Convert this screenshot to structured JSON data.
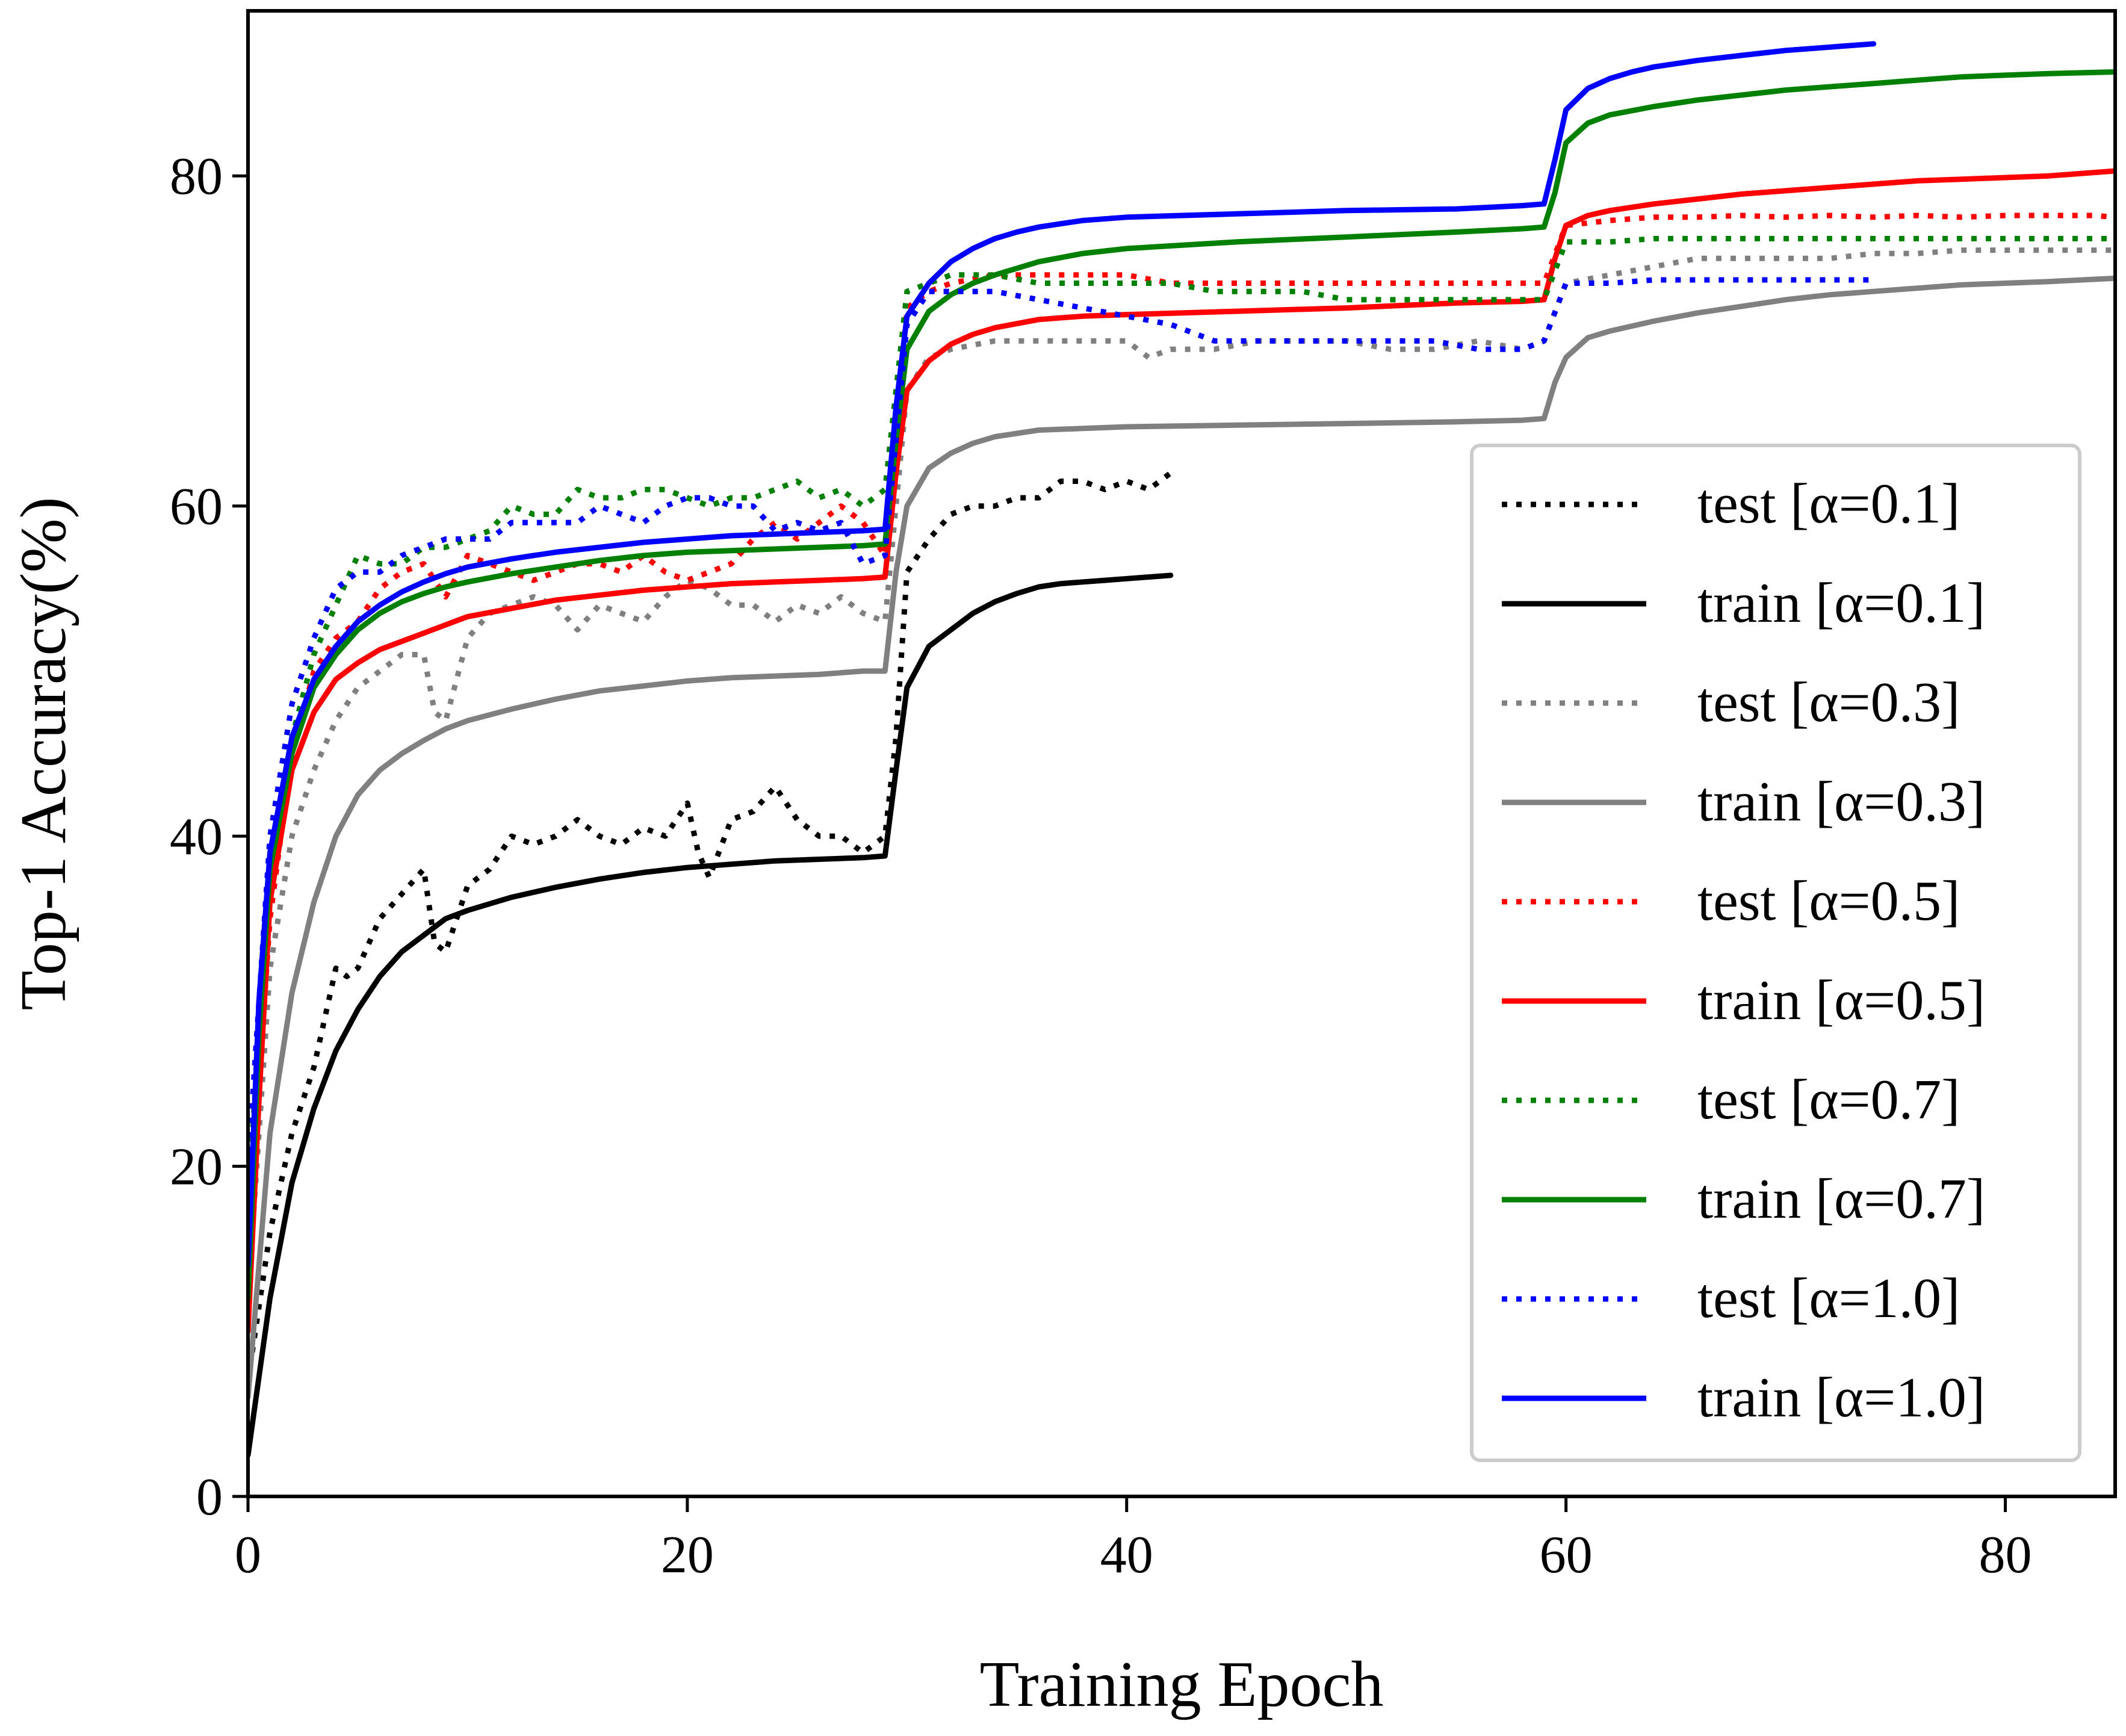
{
  "chart_data": {
    "type": "line",
    "title": "",
    "xlabel": "Training Epoch",
    "ylabel": "Top-1 Accuracy(%)",
    "xlim": [
      0,
      85
    ],
    "ylim": [
      0,
      90
    ],
    "xticks": [
      0,
      20,
      40,
      60,
      80
    ],
    "yticks": [
      0,
      20,
      40,
      60,
      80
    ],
    "grid": false,
    "legend_position": "lower-right",
    "series": [
      {
        "name": "test [α=0.1]",
        "color": "#000000",
        "style": "dotted",
        "x": [
          0,
          1,
          2,
          3,
          4,
          4.5,
          5,
          6,
          7,
          8,
          8.5,
          9,
          10,
          11,
          12,
          13,
          14,
          15,
          16,
          17,
          18,
          19,
          20,
          20.5,
          21,
          22,
          23,
          24,
          25,
          26,
          27,
          28,
          29,
          29.5,
          30,
          31,
          32,
          33,
          34,
          35,
          36,
          37,
          38,
          39,
          40,
          41,
          42
        ],
        "y": [
          7,
          16,
          22,
          26,
          32,
          31.5,
          32,
          35,
          36.5,
          38,
          33.5,
          33,
          37,
          38,
          40,
          39.5,
          40,
          41,
          40,
          39.5,
          40.5,
          40,
          42,
          39,
          37.5,
          41,
          41.5,
          43,
          41,
          40,
          40,
          39,
          40,
          46,
          56,
          58,
          59.5,
          60,
          60,
          60.5,
          60.5,
          61.5,
          61.5,
          61,
          61.5,
          61,
          62
        ]
      },
      {
        "name": "train [α=0.1]",
        "color": "#000000",
        "style": "solid",
        "x": [
          0,
          1,
          2,
          3,
          4,
          5,
          6,
          7,
          8,
          9,
          10,
          12,
          14,
          16,
          18,
          20,
          22,
          24,
          26,
          28,
          29,
          29.5,
          30,
          31,
          32,
          33,
          34,
          35,
          36,
          37,
          38,
          39,
          40,
          41,
          42
        ],
        "y": [
          2.5,
          12,
          19,
          23.5,
          27,
          29.5,
          31.5,
          33,
          34,
          35,
          35.5,
          36.3,
          36.9,
          37.4,
          37.8,
          38.1,
          38.3,
          38.5,
          38.6,
          38.7,
          38.8,
          44,
          49,
          51.5,
          52.5,
          53.5,
          54.2,
          54.7,
          55.1,
          55.3,
          55.4,
          55.5,
          55.6,
          55.7,
          55.8
        ]
      },
      {
        "name": "test [α=0.3]",
        "color": "#808080",
        "style": "dotted",
        "x": [
          0,
          1,
          2,
          3,
          4,
          5,
          6,
          7,
          8,
          8.5,
          9,
          10,
          11,
          12,
          13,
          14,
          15,
          16,
          17,
          18,
          19,
          20,
          21,
          22,
          23,
          24,
          25,
          26,
          27,
          28,
          29,
          30,
          31,
          32,
          34,
          36,
          38,
          40,
          41,
          42,
          44,
          46,
          48,
          50,
          52,
          54,
          56,
          58,
          59,
          60,
          62,
          64,
          66,
          68,
          70,
          72,
          74,
          76,
          78,
          80,
          82,
          84,
          85
        ],
        "y": [
          12,
          32,
          40,
          44,
          47,
          49,
          50,
          51,
          51,
          47.5,
          47,
          52,
          53.5,
          54,
          54.5,
          54,
          52.5,
          54,
          53.5,
          53,
          54.5,
          55.5,
          55,
          54,
          54,
          53,
          54,
          53.5,
          54.5,
          53.5,
          53,
          67,
          69,
          69.5,
          70,
          70,
          70,
          70,
          69,
          69.5,
          69.5,
          70,
          70,
          70,
          69.5,
          69.5,
          70,
          69.5,
          70,
          73.5,
          74,
          74.5,
          75,
          75,
          75,
          75,
          75.3,
          75.3,
          75.5,
          75.5,
          75.5,
          75.5,
          75.5
        ]
      },
      {
        "name": "train [α=0.3]",
        "color": "#808080",
        "style": "solid",
        "x": [
          0,
          0.5,
          1,
          2,
          3,
          4,
          5,
          6,
          7,
          8,
          9,
          10,
          12,
          14,
          16,
          18,
          20,
          22,
          24,
          26,
          28,
          29,
          29.5,
          30,
          31,
          32,
          33,
          34,
          36,
          38,
          40,
          45,
          50,
          55,
          58,
          59,
          59.5,
          60,
          61,
          62,
          64,
          66,
          68,
          70,
          72,
          74,
          76,
          78,
          80,
          82,
          85
        ],
        "y": [
          6,
          14,
          22,
          30.5,
          36,
          40,
          42.5,
          44,
          45,
          45.8,
          46.5,
          47,
          47.7,
          48.3,
          48.8,
          49.1,
          49.4,
          49.6,
          49.7,
          49.8,
          50,
          50,
          56,
          60,
          62.3,
          63.2,
          63.8,
          64.2,
          64.6,
          64.7,
          64.8,
          64.9,
          65,
          65.1,
          65.2,
          65.3,
          67.5,
          69,
          70.2,
          70.6,
          71.2,
          71.7,
          72.1,
          72.5,
          72.8,
          73,
          73.2,
          73.4,
          73.5,
          73.6,
          73.8
        ]
      },
      {
        "name": "test [α=0.5]",
        "color": "#ff0000",
        "style": "dotted",
        "x": [
          0,
          1,
          2,
          3,
          4,
          5,
          6,
          7,
          8,
          9,
          10,
          11,
          12,
          13,
          14,
          15,
          16,
          17,
          18,
          19,
          20,
          21,
          22,
          23,
          24,
          25,
          26,
          27,
          28,
          29,
          30,
          31,
          32,
          34,
          36,
          38,
          40,
          42,
          44,
          46,
          48,
          50,
          52,
          54,
          56,
          58,
          59,
          60,
          62,
          64,
          66,
          68,
          70,
          72,
          74,
          76,
          78,
          80,
          82,
          84,
          85
        ],
        "y": [
          15,
          35,
          45,
          50,
          52,
          53,
          55,
          56,
          56.5,
          54.5,
          57,
          56.5,
          56,
          55.5,
          56,
          56.5,
          56.5,
          56,
          57,
          56,
          55.5,
          56,
          56.5,
          58,
          59,
          58,
          59,
          60,
          59,
          57,
          72,
          73,
          73.5,
          74,
          74,
          74,
          74,
          73.5,
          73.5,
          73.5,
          73.5,
          73.5,
          73.5,
          73.5,
          73.5,
          73.5,
          73.5,
          77,
          77.3,
          77.5,
          77.5,
          77.6,
          77.5,
          77.6,
          77.5,
          77.6,
          77.5,
          77.6,
          77.6,
          77.6,
          77.5
        ]
      },
      {
        "name": "train [α=0.5]",
        "color": "#ff0000",
        "style": "solid",
        "x": [
          0,
          0.5,
          1,
          2,
          3,
          4,
          5,
          6,
          7,
          8,
          9,
          10,
          12,
          14,
          16,
          18,
          20,
          22,
          24,
          26,
          28,
          29,
          29.5,
          30,
          31,
          32,
          33,
          34,
          36,
          38,
          40,
          45,
          50,
          55,
          58,
          59,
          59.5,
          60,
          61,
          62,
          64,
          66,
          68,
          70,
          72,
          74,
          76,
          78,
          80,
          82,
          85
        ],
        "y": [
          10,
          24,
          36,
          44,
          47.5,
          49.5,
          50.5,
          51.3,
          51.8,
          52.3,
          52.8,
          53.3,
          53.8,
          54.3,
          54.6,
          54.9,
          55.1,
          55.3,
          55.4,
          55.5,
          55.6,
          55.7,
          62,
          67,
          68.8,
          69.8,
          70.4,
          70.8,
          71.3,
          71.5,
          71.6,
          71.8,
          72,
          72.3,
          72.4,
          72.5,
          75,
          77,
          77.6,
          77.9,
          78.3,
          78.6,
          78.9,
          79.1,
          79.3,
          79.5,
          79.7,
          79.8,
          79.9,
          80,
          80.3
        ]
      },
      {
        "name": "test [α=0.7]",
        "color": "#008000",
        "style": "dotted",
        "x": [
          0,
          1,
          2,
          3,
          4,
          5,
          6,
          7,
          8,
          9,
          10,
          11,
          12,
          13,
          14,
          15,
          16,
          17,
          18,
          19,
          20,
          21,
          22,
          23,
          24,
          25,
          26,
          27,
          28,
          29,
          30,
          31,
          32,
          34,
          36,
          38,
          40,
          42,
          44,
          46,
          48,
          50,
          52,
          54,
          56,
          58,
          59,
          60,
          62,
          64,
          66,
          68,
          70,
          72,
          74,
          76,
          78,
          80,
          82,
          84,
          85
        ],
        "y": [
          18,
          38,
          46,
          51,
          54,
          57,
          56.5,
          56.5,
          57.5,
          57.5,
          58,
          58.5,
          60,
          59.5,
          59.5,
          61,
          60.5,
          60.5,
          61,
          61,
          60.5,
          60,
          60.5,
          60.5,
          61,
          61.5,
          60.5,
          61,
          60,
          61,
          73,
          73.5,
          74,
          74,
          73.5,
          73.5,
          73.5,
          73.5,
          73,
          73,
          73,
          72.5,
          72.5,
          72.5,
          72.5,
          72.5,
          72.5,
          76,
          76,
          76.2,
          76.2,
          76.2,
          76.2,
          76.2,
          76.2,
          76.2,
          76.2,
          76.2,
          76.2,
          76.2,
          76.2
        ]
      },
      {
        "name": "train [α=0.7]",
        "color": "#008000",
        "style": "solid",
        "x": [
          0,
          0.5,
          1,
          2,
          3,
          4,
          5,
          6,
          7,
          8,
          9,
          10,
          12,
          14,
          16,
          18,
          20,
          22,
          24,
          26,
          28,
          29,
          29.5,
          30,
          31,
          32,
          33,
          34,
          36,
          38,
          40,
          45,
          50,
          55,
          58,
          59,
          59.5,
          60,
          61,
          62,
          64,
          66,
          68,
          70,
          72,
          74,
          76,
          78,
          80,
          82,
          85
        ],
        "y": [
          12,
          28,
          38,
          45,
          49,
          51,
          52.5,
          53.5,
          54.2,
          54.7,
          55.1,
          55.4,
          55.9,
          56.3,
          56.7,
          57,
          57.2,
          57.3,
          57.4,
          57.5,
          57.6,
          57.7,
          64,
          69.5,
          71.8,
          72.8,
          73.5,
          74,
          74.8,
          75.3,
          75.6,
          76,
          76.3,
          76.6,
          76.8,
          76.9,
          79,
          82,
          83.2,
          83.7,
          84.2,
          84.6,
          84.9,
          85.2,
          85.4,
          85.6,
          85.8,
          86,
          86.1,
          86.2,
          86.3
        ]
      },
      {
        "name": "test [α=1.0]",
        "color": "#0000ff",
        "style": "dotted",
        "x": [
          0,
          1,
          2,
          3,
          4,
          5,
          6,
          7,
          8,
          9,
          10,
          11,
          12,
          13,
          14,
          15,
          16,
          17,
          18,
          19,
          20,
          21,
          22,
          23,
          24,
          25,
          26,
          27,
          28,
          29,
          30,
          31,
          32,
          34,
          36,
          38,
          40,
          42,
          44,
          46,
          48,
          50,
          52,
          54,
          56,
          58,
          59,
          60,
          62,
          64,
          66,
          68,
          70,
          72,
          74
        ],
        "y": [
          20,
          40,
          48,
          52,
          55,
          56,
          56,
          57,
          57.5,
          58,
          58,
          58,
          59,
          59,
          59,
          59,
          60,
          59.5,
          59,
          60,
          60.5,
          60.5,
          60,
          60,
          58.5,
          59,
          58.5,
          59,
          56.5,
          57,
          71,
          73,
          73,
          73,
          72.5,
          72,
          71.5,
          71,
          70,
          70,
          70,
          70,
          70,
          70,
          69.5,
          69.5,
          70,
          73.5,
          73.5,
          73.7,
          73.7,
          73.7,
          73.7,
          73.7,
          73.7
        ]
      },
      {
        "name": "train [α=1.0]",
        "color": "#0000ff",
        "style": "solid",
        "x": [
          0,
          0.5,
          1,
          2,
          3,
          4,
          5,
          6,
          7,
          8,
          9,
          10,
          12,
          14,
          16,
          18,
          20,
          22,
          24,
          26,
          28,
          29,
          29.5,
          30,
          31,
          32,
          33,
          34,
          35,
          36,
          37,
          38,
          40,
          45,
          50,
          55,
          58,
          59,
          59.5,
          60,
          61,
          62,
          63,
          64,
          66,
          68,
          70,
          72,
          74
        ],
        "y": [
          14,
          30,
          39,
          46,
          49.5,
          51.5,
          53,
          54,
          54.8,
          55.4,
          55.9,
          56.3,
          56.8,
          57.2,
          57.5,
          57.8,
          58,
          58.2,
          58.3,
          58.4,
          58.5,
          58.6,
          66,
          71.5,
          73.5,
          74.8,
          75.6,
          76.2,
          76.6,
          76.9,
          77.1,
          77.3,
          77.5,
          77.7,
          77.9,
          78,
          78.2,
          78.3,
          81,
          84,
          85.3,
          85.9,
          86.3,
          86.6,
          87,
          87.3,
          87.6,
          87.8,
          88
        ]
      }
    ]
  }
}
